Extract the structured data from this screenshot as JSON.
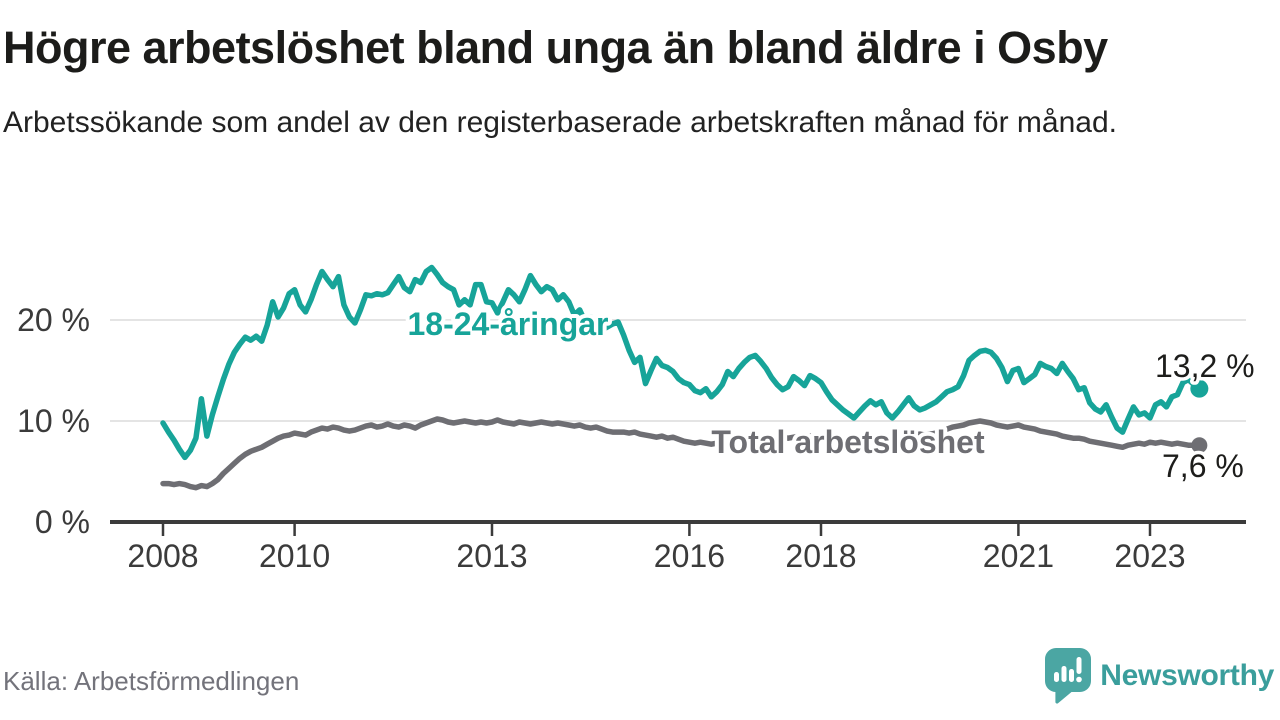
{
  "header": {
    "title": "Högre arbetslöshet bland unga än bland äldre i Osby",
    "subtitle": "Arbetssökande som andel av den registerbaserade arbetskraften månad för månad."
  },
  "footer": {
    "source": "Källa: Arbetsförmedlingen",
    "brand": "Newsworthy"
  },
  "colors": {
    "young_line": "#17a499",
    "total_line": "#6e6e73",
    "grid": "#e4e4e4",
    "axis": "#3b3b3b",
    "axis_text": "#3b3b3b",
    "value_text": "#1d1d1b",
    "brand_icon": "#4ba6a3",
    "brand_text": "#3a9e9c"
  },
  "chart_data": {
    "type": "line",
    "unit": "%",
    "x_start": {
      "year": 2008,
      "month": 1
    },
    "x_end": {
      "year": 2023,
      "month": 10
    },
    "x_tick_years": [
      2008,
      2010,
      2013,
      2016,
      2018,
      2021,
      2023
    ],
    "x_tick_labels": [
      "2008",
      "2010",
      "2013",
      "2016",
      "2018",
      "2021",
      "2023"
    ],
    "y_ticks": [
      {
        "value": 0,
        "label": "0 %"
      },
      {
        "value": 10,
        "label": "10 %"
      },
      {
        "value": 20,
        "label": "20 %"
      }
    ],
    "ylim": [
      0,
      26.5
    ],
    "grid": true,
    "legend_position": "inline-labels",
    "series": [
      {
        "name": "18-24-åringar",
        "color": "#17a499",
        "end_label": "13,2 %",
        "end_value": 13.2,
        "values": [
          9.8,
          8.9,
          8.1,
          7.2,
          6.4,
          7.1,
          8.3,
          12.2,
          8.5,
          10.6,
          12.4,
          14.1,
          15.6,
          16.8,
          17.6,
          18.3,
          18.0,
          18.4,
          17.9,
          19.5,
          21.8,
          20.3,
          21.2,
          22.6,
          23.0,
          21.5,
          20.8,
          22.0,
          23.5,
          24.8,
          24.0,
          23.3,
          24.3,
          21.5,
          20.3,
          19.7,
          21.0,
          22.5,
          22.4,
          22.6,
          22.5,
          22.7,
          23.5,
          24.3,
          23.2,
          22.8,
          24.0,
          23.7,
          24.8,
          25.2,
          24.5,
          23.7,
          23.3,
          23.0,
          21.5,
          22.0,
          21.5,
          23.5,
          23.5,
          21.8,
          21.7,
          20.7,
          21.8,
          23.0,
          22.5,
          21.8,
          23.0,
          24.4,
          23.5,
          22.8,
          23.3,
          23.0,
          22.0,
          22.5,
          21.8,
          20.5,
          21.0,
          19.8,
          20.3,
          19.5,
          19.0,
          19.3,
          19.6,
          19.8,
          18.5,
          17.0,
          15.8,
          16.3,
          13.7,
          15.0,
          16.2,
          15.5,
          15.3,
          14.9,
          14.2,
          13.8,
          13.6,
          13.0,
          12.8,
          13.2,
          12.4,
          12.9,
          13.6,
          14.9,
          14.4,
          15.2,
          15.8,
          16.3,
          16.5,
          15.9,
          15.2,
          14.3,
          13.6,
          13.1,
          13.4,
          14.4,
          14.0,
          13.5,
          14.5,
          14.2,
          13.8,
          12.9,
          12.1,
          11.6,
          11.1,
          10.7,
          10.3,
          10.9,
          11.5,
          12.0,
          11.6,
          11.9,
          10.8,
          10.3,
          10.9,
          11.6,
          12.3,
          11.5,
          11.1,
          11.3,
          11.6,
          11.9,
          12.4,
          12.9,
          13.1,
          13.4,
          14.5,
          16.0,
          16.5,
          16.9,
          17.0,
          16.8,
          16.2,
          15.3,
          13.9,
          15.0,
          15.2,
          13.8,
          14.2,
          14.6,
          15.7,
          15.4,
          15.2,
          14.7,
          15.7,
          14.9,
          14.2,
          13.1,
          13.3,
          11.8,
          11.2,
          10.9,
          11.6,
          10.4,
          9.3,
          8.9,
          10.2,
          11.4,
          10.6,
          10.8,
          10.3,
          11.6,
          11.9,
          11.4,
          12.4,
          12.6,
          13.8,
          14.1,
          13.6,
          13.2
        ]
      },
      {
        "name": "Total arbetslöshet",
        "color": "#6e6e73",
        "end_label": "7,6 %",
        "end_value": 7.6,
        "values": [
          3.8,
          3.8,
          3.7,
          3.8,
          3.7,
          3.5,
          3.4,
          3.6,
          3.5,
          3.8,
          4.2,
          4.8,
          5.3,
          5.8,
          6.3,
          6.7,
          7.0,
          7.2,
          7.4,
          7.7,
          8.0,
          8.3,
          8.5,
          8.6,
          8.8,
          8.7,
          8.6,
          8.9,
          9.1,
          9.3,
          9.2,
          9.4,
          9.3,
          9.1,
          9.0,
          9.1,
          9.3,
          9.5,
          9.6,
          9.4,
          9.5,
          9.7,
          9.5,
          9.4,
          9.6,
          9.5,
          9.3,
          9.6,
          9.8,
          10.0,
          10.2,
          10.1,
          9.9,
          9.8,
          9.9,
          10.0,
          9.9,
          9.8,
          9.9,
          9.8,
          9.9,
          10.1,
          9.9,
          9.8,
          9.7,
          9.9,
          9.8,
          9.7,
          9.8,
          9.9,
          9.8,
          9.7,
          9.8,
          9.7,
          9.6,
          9.5,
          9.6,
          9.4,
          9.3,
          9.4,
          9.2,
          9.0,
          8.9,
          8.9,
          8.9,
          8.8,
          8.9,
          8.7,
          8.6,
          8.5,
          8.4,
          8.5,
          8.3,
          8.4,
          8.2,
          8.0,
          7.9,
          7.8,
          7.9,
          7.8,
          7.7,
          7.8,
          7.9,
          8.0,
          8.1,
          8.2,
          8.1,
          8.2,
          8.3,
          8.4,
          8.3,
          8.2,
          8.3,
          8.4,
          8.3,
          8.4,
          8.5,
          8.4,
          8.5,
          8.4,
          8.5,
          8.4,
          8.3,
          8.4,
          8.3,
          8.2,
          8.3,
          8.4,
          8.3,
          8.4,
          8.5,
          8.6,
          8.5,
          8.4,
          8.5,
          8.6,
          8.5,
          8.6,
          8.7,
          8.6,
          8.7,
          8.8,
          8.9,
          9.2,
          9.4,
          9.5,
          9.6,
          9.8,
          9.9,
          10.0,
          9.9,
          9.8,
          9.6,
          9.5,
          9.4,
          9.5,
          9.6,
          9.4,
          9.3,
          9.2,
          9.0,
          8.9,
          8.8,
          8.7,
          8.5,
          8.4,
          8.3,
          8.3,
          8.2,
          8.0,
          7.9,
          7.8,
          7.7,
          7.6,
          7.5,
          7.4,
          7.6,
          7.7,
          7.8,
          7.7,
          7.9,
          7.8,
          7.9,
          7.8,
          7.7,
          7.8,
          7.7,
          7.6,
          7.6,
          7.6
        ]
      }
    ]
  }
}
